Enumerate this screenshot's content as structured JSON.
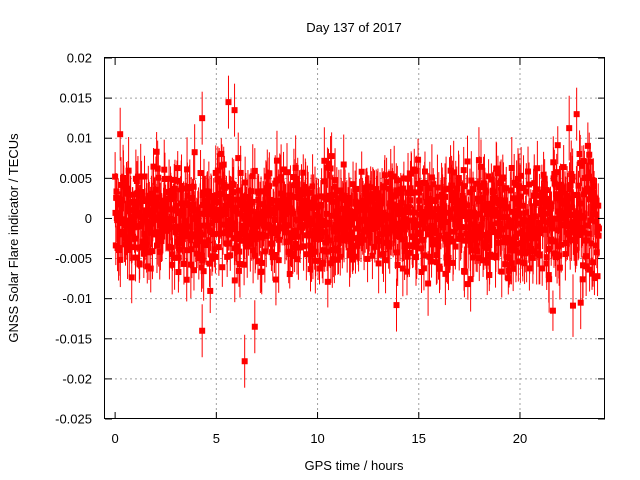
{
  "chart_data": {
    "type": "scatter",
    "title": "Day 137 of 2017",
    "xlabel": "GPS time / hours",
    "ylabel": "GNSS Solar Flare indicator / TECUs",
    "xlim": [
      -0.5,
      24.2
    ],
    "ylim": [
      -0.025,
      0.02
    ],
    "xticks": [
      0,
      5,
      10,
      15,
      20
    ],
    "xtick_labels": [
      "0",
      "5",
      "10",
      "15",
      "20"
    ],
    "yticks": [
      -0.025,
      -0.02,
      -0.015,
      -0.01,
      -0.005,
      0,
      0.005,
      0.01,
      0.015,
      0.02
    ],
    "ytick_labels": [
      "-0.025",
      "-0.02",
      "-0.015",
      "-0.01",
      "-0.005",
      "0",
      "0.005",
      "0.01",
      "0.015",
      "0.02"
    ],
    "grid": true,
    "legend": "none",
    "series": [
      {
        "name": "GNSS Solar Flare indicator",
        "color": "#ff0000",
        "marker": "square",
        "error_bars": true,
        "x_range": [
          0,
          23.9
        ],
        "typical_y_range": [
          -0.01,
          0.01
        ],
        "typical_error": 0.003,
        "notable_points": [
          {
            "x": 0.25,
            "y": 0.0105
          },
          {
            "x": 4.3,
            "y": -0.014
          },
          {
            "x": 4.3,
            "y": 0.0125
          },
          {
            "x": 5.6,
            "y": 0.0145
          },
          {
            "x": 5.9,
            "y": 0.0135
          },
          {
            "x": 6.4,
            "y": -0.0178
          },
          {
            "x": 6.9,
            "y": -0.0135
          },
          {
            "x": 13.9,
            "y": -0.0108
          },
          {
            "x": 22.8,
            "y": 0.013
          },
          {
            "x": 23.0,
            "y": -0.0105
          }
        ]
      }
    ]
  }
}
